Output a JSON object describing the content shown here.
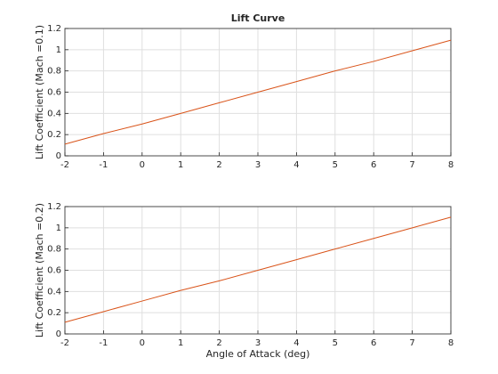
{
  "chart_data": [
    {
      "type": "line",
      "title": "Lift Curve",
      "ylabel": "Lift Coefficient (Mach =0.1)",
      "x": [
        -2,
        -1,
        0,
        1,
        2,
        3,
        4,
        5,
        6,
        7,
        8
      ],
      "values": [
        0.11,
        0.21,
        0.3,
        0.4,
        0.5,
        0.6,
        0.7,
        0.8,
        0.89,
        0.99,
        1.09
      ],
      "color": "#d95319",
      "xlim": [
        -2,
        8
      ],
      "ylim": [
        0,
        1.2
      ],
      "xticks": [
        -2,
        -1,
        0,
        1,
        2,
        3,
        4,
        5,
        6,
        7,
        8
      ],
      "yticks": [
        0,
        0.2,
        0.4,
        0.6,
        0.8,
        1,
        1.2
      ],
      "grid": true
    },
    {
      "type": "line",
      "ylabel": "Lift Coefficient (Mach =0.2)",
      "xlabel": "Angle of Attack (deg)",
      "x": [
        -2,
        -1,
        0,
        1,
        2,
        3,
        4,
        5,
        6,
        7,
        8
      ],
      "values": [
        0.11,
        0.21,
        0.31,
        0.41,
        0.5,
        0.6,
        0.7,
        0.8,
        0.9,
        1.0,
        1.1
      ],
      "color": "#d95319",
      "xlim": [
        -2,
        8
      ],
      "ylim": [
        0,
        1.2
      ],
      "xticks": [
        -2,
        -1,
        0,
        1,
        2,
        3,
        4,
        5,
        6,
        7,
        8
      ],
      "yticks": [
        0,
        0.2,
        0.4,
        0.6,
        0.8,
        1,
        1.2
      ],
      "grid": true
    }
  ]
}
